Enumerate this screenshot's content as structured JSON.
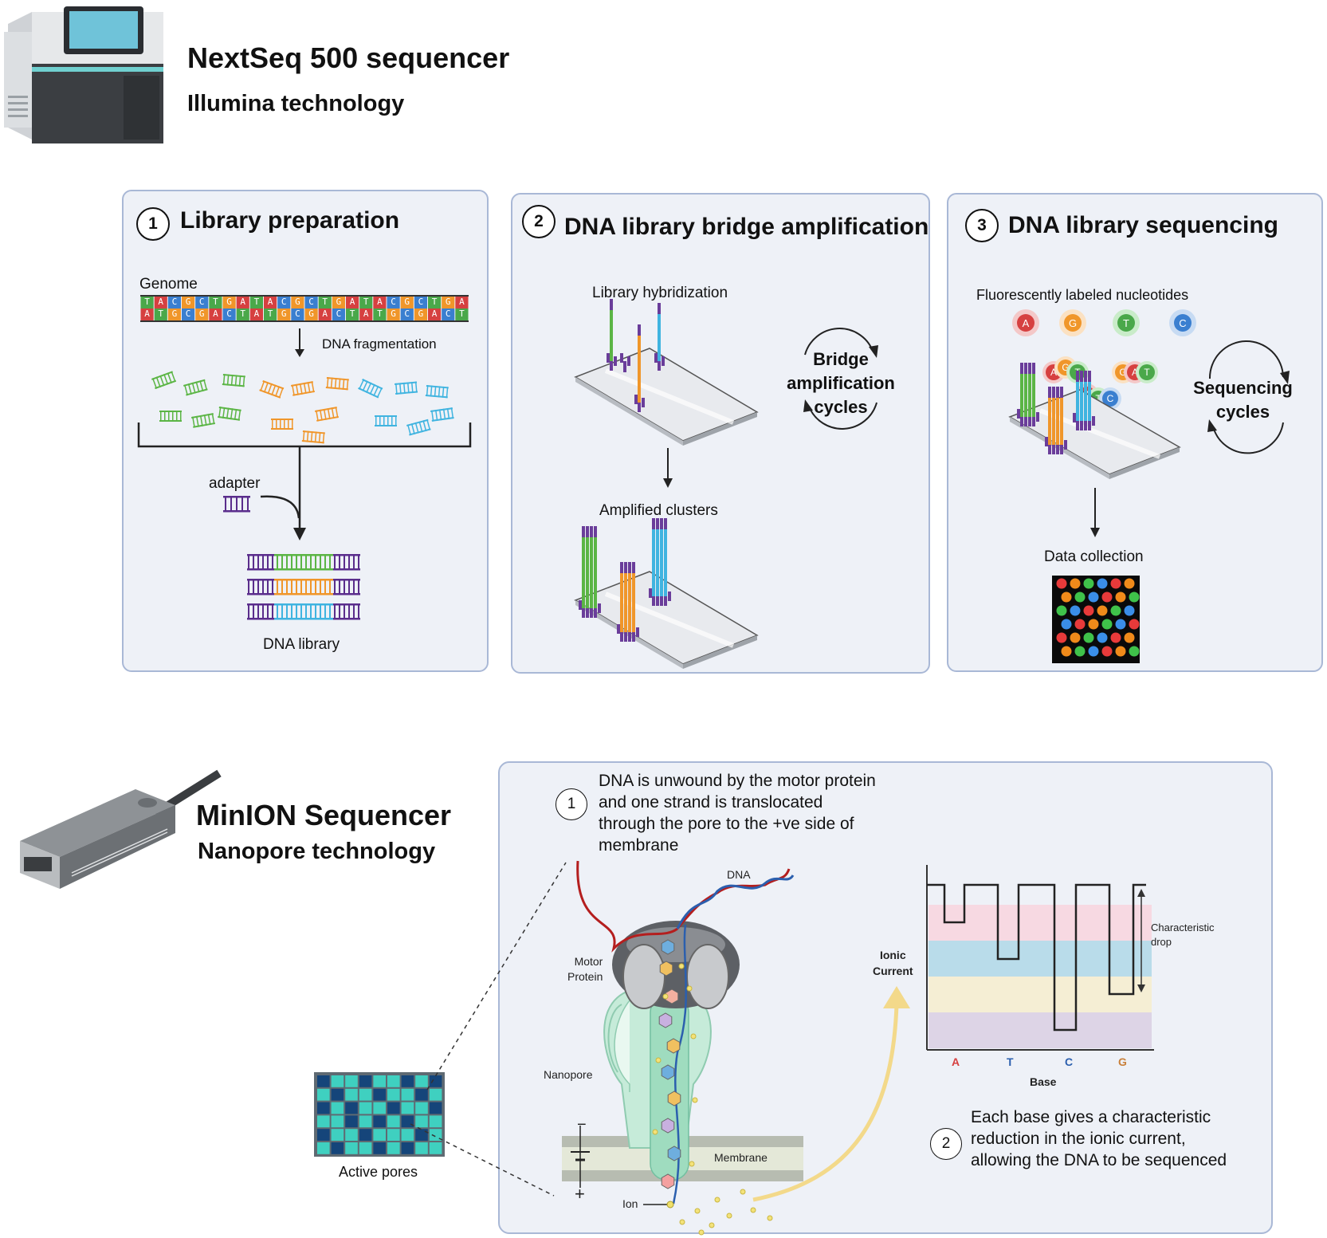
{
  "nextseq": {
    "title": "NextSeq 500 sequencer",
    "subtitle": "Illumina technology",
    "device_icon": "sequencer-machine-icon"
  },
  "panels": [
    {
      "number": "1",
      "title": "Library preparation",
      "labels": {
        "genome": "Genome",
        "fragmentation": "DNA fragmentation",
        "adapter": "adapter",
        "library": "DNA library"
      },
      "genome_top": [
        "T",
        "A",
        "C",
        "G",
        "C",
        "T",
        "G",
        "A",
        "T",
        "A",
        "C",
        "G",
        "C",
        "T",
        "G",
        "A",
        "T",
        "A",
        "C",
        "G",
        "C",
        "T",
        "G",
        "A"
      ],
      "genome_bottom": [
        "A",
        "T",
        "G",
        "C",
        "G",
        "A",
        "C",
        "T",
        "A",
        "T",
        "G",
        "C",
        "G",
        "A",
        "C",
        "T",
        "A",
        "T",
        "G",
        "C",
        "G",
        "A",
        "C",
        "T"
      ]
    },
    {
      "number": "2",
      "title": "DNA library bridge amplification",
      "labels": {
        "hybridization": "Library hybridization",
        "cycles_l1": "Bridge",
        "cycles_l2": "amplification",
        "cycles_l3": "cycles",
        "clusters": "Amplified clusters"
      }
    },
    {
      "number": "3",
      "title": "DNA library sequencing",
      "labels": {
        "nucleotides": "Fluorescently labeled nucleotides",
        "cycles_l1": "Sequencing",
        "cycles_l2": "cycles",
        "data": "Data collection"
      },
      "nucleotides": [
        "A",
        "G",
        "T",
        "C"
      ]
    }
  ],
  "minion": {
    "title": "MinION Sequencer",
    "subtitle": "Nanopore technology",
    "device_icon": "usb-sequencer-icon",
    "active_pores": "Active pores"
  },
  "nanopore": {
    "step1_number": "1",
    "step1_lines": [
      "DNA is unwound by the motor protein",
      "and one strand is translocated",
      "through the pore to the +ve side of",
      "membrane"
    ],
    "labels": {
      "dna": "DNA",
      "motor_l1": "Motor",
      "motor_l2": "Protein",
      "nanopore": "Nanopore",
      "membrane": "Membrane",
      "ion": "Ion",
      "minus": "−",
      "plus": "+"
    },
    "chart": {
      "ylabel_l1": "Ionic",
      "ylabel_l2": "Current",
      "xlabel": "Base",
      "bases": [
        "A",
        "T",
        "C",
        "G"
      ],
      "annotation_l1": "Characteristic",
      "annotation_l2": "drop"
    },
    "step2_number": "2",
    "step2_lines": [
      "Each base gives a characteristic",
      "reduction in the ionic current,",
      "allowing the DNA to be sequenced"
    ]
  },
  "colors": {
    "panel_bg": "#eef1f7",
    "panel_border": "#a9b8d6",
    "green": "#5bb545",
    "orange": "#f0962a",
    "blue": "#40b4e0",
    "purple": "#6a3d9a",
    "red": "#d64040"
  }
}
